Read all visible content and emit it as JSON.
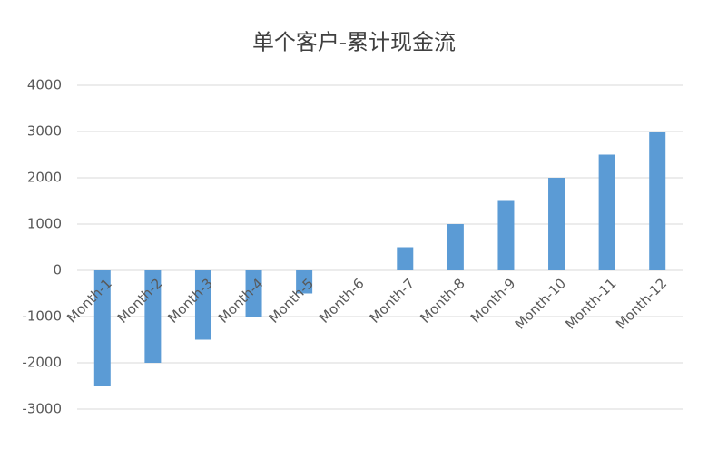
{
  "chart_data": {
    "type": "bar",
    "title": "单个客户-累计现金流",
    "categories": [
      "Month-1",
      "Month-2",
      "Month-3",
      "Month-4",
      "Month-5",
      "Month-6",
      "Month-7",
      "Month-8",
      "Month-9",
      "Month-10",
      "Month-11",
      "Month-12"
    ],
    "values": [
      -2500,
      -2000,
      -1500,
      -1000,
      -500,
      0,
      500,
      1000,
      1500,
      2000,
      2500,
      3000
    ],
    "color": "#5b9bd5",
    "ylim": [
      -3000,
      4000
    ],
    "yticks": [
      -3000,
      -2000,
      -1000,
      0,
      1000,
      2000,
      3000,
      4000
    ],
    "grid": true
  }
}
